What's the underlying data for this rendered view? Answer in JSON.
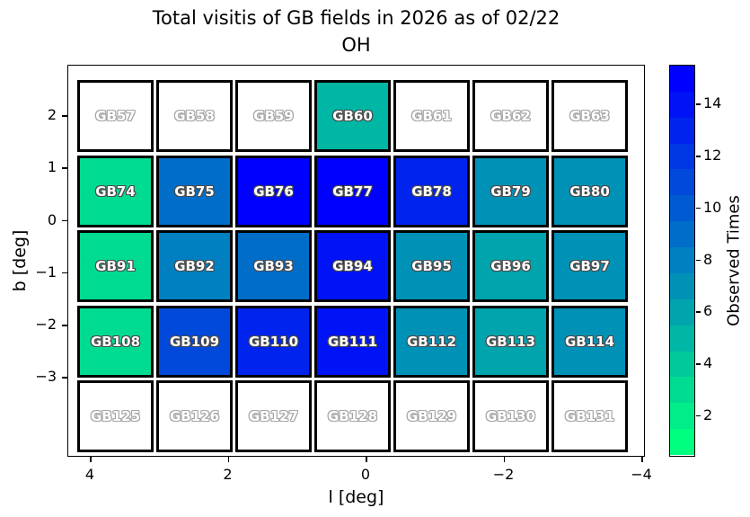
{
  "chart_data": {
    "type": "heatmap",
    "title": "Total visitis of GB fields in 2026 as of 02/22",
    "subtitle": "OH",
    "xlabel": "l [deg]",
    "ylabel": "b [deg]",
    "colorbar_label": "Observed Times",
    "colormap": {
      "name": "winter_r",
      "low_color": "#00FF80",
      "high_color": "#0000FF",
      "levels": 15,
      "empty_color": "#FFFFFF"
    },
    "vmin": 1,
    "vmax": 15,
    "xlim": [
      4.3,
      -4.1
    ],
    "ylim": [
      -4.6,
      3.0
    ],
    "x_ticks": [
      "4",
      "2",
      "0",
      "−2",
      "−4"
    ],
    "y_ticks": [
      "2",
      "1",
      "0",
      "−1",
      "−2",
      "−3"
    ],
    "colorbar_ticks": [
      2,
      4,
      6,
      8,
      10,
      12,
      14
    ],
    "grid_note": "7 columns x 5 rows of GB field cells; white cells = not observed",
    "rows": [
      [
        {
          "label": "GB57",
          "value": null
        },
        {
          "label": "GB58",
          "value": null
        },
        {
          "label": "GB59",
          "value": null
        },
        {
          "label": "GB60",
          "value": 5
        },
        {
          "label": "GB61",
          "value": null
        },
        {
          "label": "GB62",
          "value": null
        },
        {
          "label": "GB63",
          "value": null
        }
      ],
      [
        {
          "label": "GB74",
          "value": 3
        },
        {
          "label": "GB75",
          "value": 9
        },
        {
          "label": "GB76",
          "value": 15
        },
        {
          "label": "GB77",
          "value": 15
        },
        {
          "label": "GB78",
          "value": 13
        },
        {
          "label": "GB79",
          "value": 7
        },
        {
          "label": "GB80",
          "value": 7
        }
      ],
      [
        {
          "label": "GB91",
          "value": 3
        },
        {
          "label": "GB92",
          "value": 8
        },
        {
          "label": "GB93",
          "value": 9
        },
        {
          "label": "GB94",
          "value": 14
        },
        {
          "label": "GB95",
          "value": 7
        },
        {
          "label": "GB96",
          "value": 6
        },
        {
          "label": "GB97",
          "value": 7
        }
      ],
      [
        {
          "label": "GB108",
          "value": 3
        },
        {
          "label": "GB109",
          "value": 11
        },
        {
          "label": "GB110",
          "value": 13
        },
        {
          "label": "GB111",
          "value": 14
        },
        {
          "label": "GB112",
          "value": 7
        },
        {
          "label": "GB113",
          "value": 6
        },
        {
          "label": "GB114",
          "value": 7
        }
      ],
      [
        {
          "label": "GB125",
          "value": null
        },
        {
          "label": "GB126",
          "value": null
        },
        {
          "label": "GB127",
          "value": null
        },
        {
          "label": "GB128",
          "value": null
        },
        {
          "label": "GB129",
          "value": null
        },
        {
          "label": "GB130",
          "value": null
        },
        {
          "label": "GB131",
          "value": null
        }
      ]
    ]
  }
}
